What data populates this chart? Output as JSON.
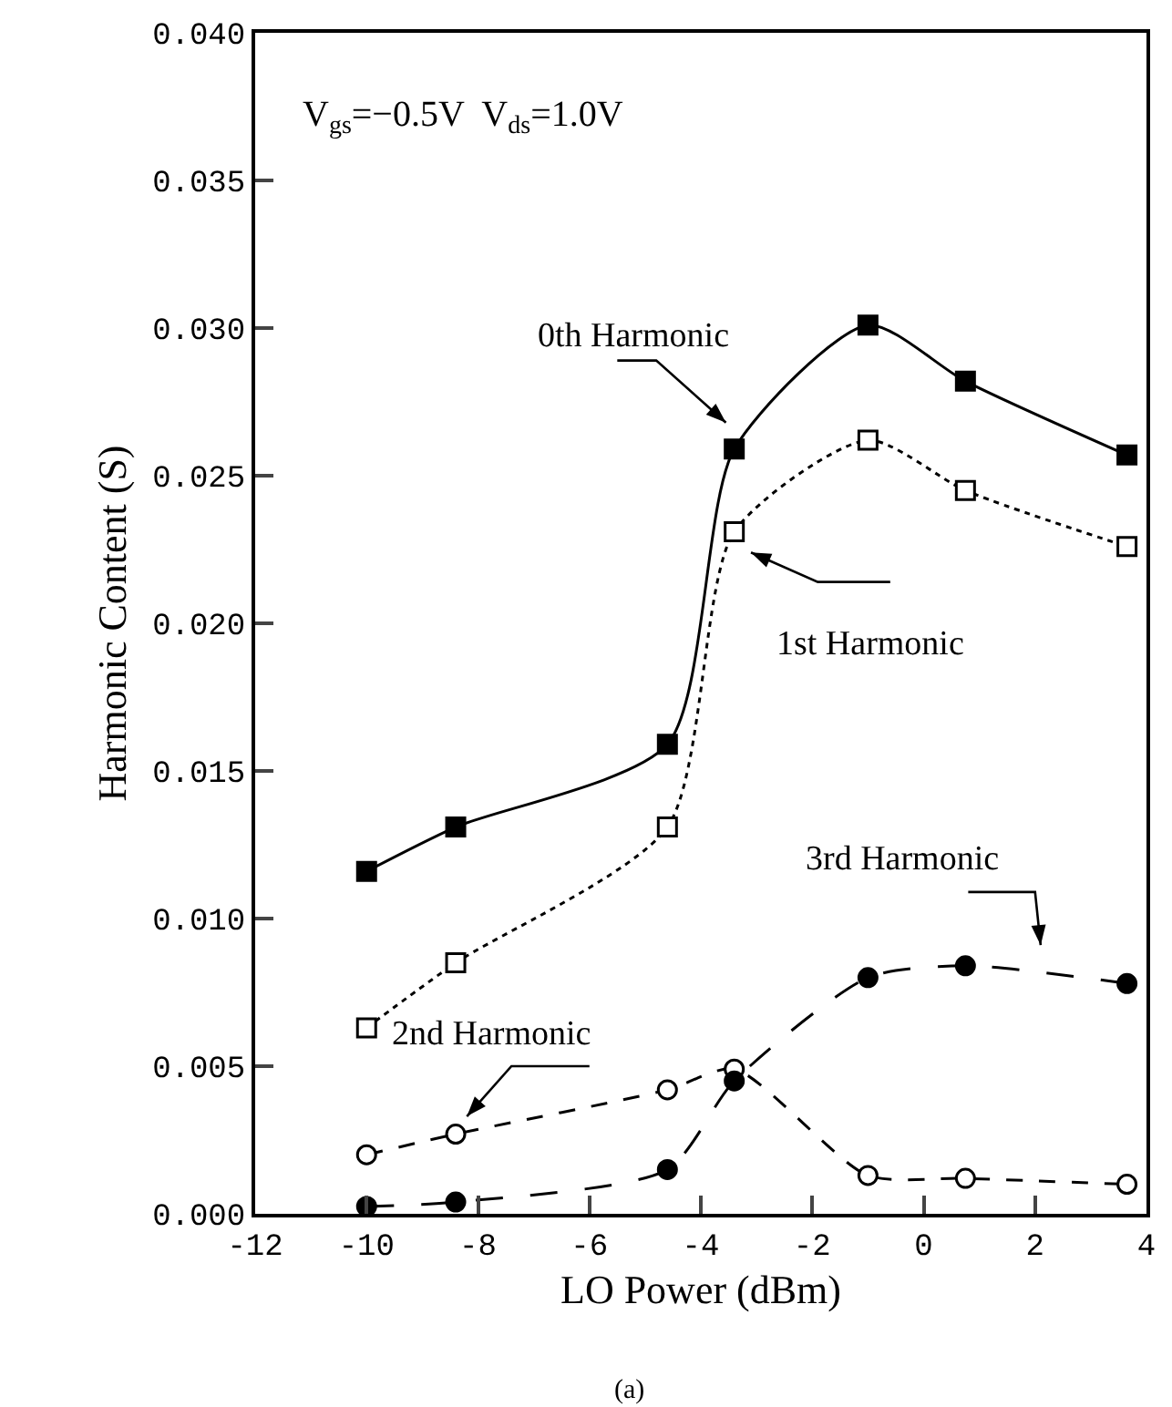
{
  "chart_data": {
    "type": "line",
    "xlabel": "LO Power (dBm)",
    "ylabel": "Harmonic Content (S)",
    "x": [
      -10,
      -8.4,
      -4.6,
      -3.4,
      -1.0,
      0.75,
      3.65
    ],
    "series": [
      {
        "name": "0th Harmonic",
        "color": "#000000",
        "marker": "square",
        "line_style": "solid",
        "values": [
          0.0116,
          0.0131,
          0.0159,
          0.0259,
          0.0301,
          0.0282,
          0.0257
        ]
      },
      {
        "name": "1st Harmonic",
        "color": "#000000",
        "marker": "square-open",
        "line_style": "dotted",
        "values": [
          0.0063,
          0.0085,
          0.0131,
          0.0231,
          0.0262,
          0.0245,
          0.0226
        ]
      },
      {
        "name": "2nd Harmonic",
        "color": "#000000",
        "marker": "circle-open",
        "line_style": "dashed",
        "values": [
          0.002,
          0.0027,
          0.0042,
          0.0049,
          0.0013,
          0.0012,
          0.001
        ]
      },
      {
        "name": "3rd Harmonic",
        "color": "#000000",
        "marker": "circle",
        "line_style": "long-dashed",
        "values": [
          0.00025,
          0.0004,
          0.0015,
          0.0045,
          0.008,
          0.0084,
          0.0078
        ]
      }
    ],
    "xlim": [
      -12,
      4
    ],
    "xticks": [
      -12,
      -10,
      -8,
      -6,
      -4,
      -2,
      0,
      2,
      4
    ],
    "ylim": [
      0,
      0.04
    ],
    "yticks": [
      {
        "value": 0,
        "label": "0.000"
      },
      {
        "value": 0.005,
        "label": "0.005"
      },
      {
        "value": 0.01,
        "label": "0.010"
      },
      {
        "value": 0.015,
        "label": "0.015"
      },
      {
        "value": 0.02,
        "label": "0.020"
      },
      {
        "value": 0.025,
        "label": "0.025"
      },
      {
        "value": 0.03,
        "label": "0.030"
      },
      {
        "value": 0.035,
        "label": "0.035"
      },
      {
        "value": 0.04,
        "label": "0.040"
      }
    ],
    "grid": false,
    "legend": false,
    "annotations": [
      "V$_{gs}$=−0.5V  V$_{ds}$=1.0V",
      "(a)"
    ]
  }
}
